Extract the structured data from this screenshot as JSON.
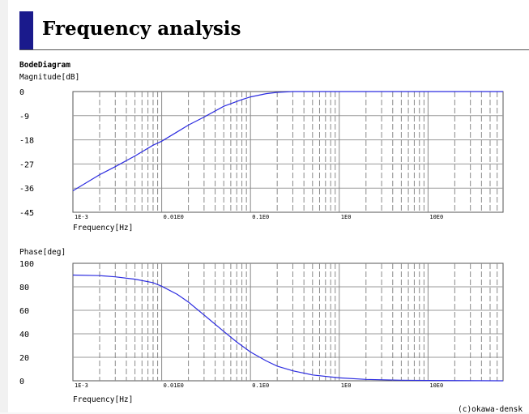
{
  "page": {
    "title": "Frequency analysis"
  },
  "copyright": "(c)okawa-densk",
  "chart_data": [
    {
      "type": "line",
      "diagram_title": "BodeDiagram",
      "ylabel": "Magnitude[dB]",
      "xlabel": "Frequency[Hz]",
      "xscale": "log",
      "xlim": [
        0.001,
        70
      ],
      "ylim": [
        -45,
        0
      ],
      "yticks": [
        "0",
        "-9",
        "-18",
        "-27",
        "-36",
        "-45"
      ],
      "xticks": [
        "1E-3",
        "0.01E0",
        "0.1E0",
        "1E0",
        "10E0"
      ],
      "grid": true,
      "series": [
        {
          "color": "#2c2ce0",
          "x": [
            0.001,
            0.002,
            0.003,
            0.005,
            0.008,
            0.01,
            0.015,
            0.02,
            0.03,
            0.05,
            0.08,
            0.1,
            0.15,
            0.2,
            0.3,
            1,
            10,
            70
          ],
          "y": [
            -37,
            -31,
            -28,
            -24,
            -20,
            -18.5,
            -15,
            -12.5,
            -9.5,
            -5.5,
            -3,
            -2,
            -0.8,
            -0.3,
            0,
            0,
            0,
            0
          ]
        }
      ]
    },
    {
      "type": "line",
      "ylabel": "Phase[deg]",
      "xlabel": "Frequency[Hz]",
      "xscale": "log",
      "xlim": [
        0.001,
        70
      ],
      "ylim": [
        0,
        100
      ],
      "yticks": [
        "100",
        "80",
        "60",
        "40",
        "20",
        "0"
      ],
      "xticks": [
        "1E-3",
        "0.01E0",
        "0.1E0",
        "1E0",
        "10E0"
      ],
      "grid": true,
      "series": [
        {
          "color": "#2c2ce0",
          "x": [
            0.001,
            0.002,
            0.003,
            0.005,
            0.008,
            0.01,
            0.015,
            0.02,
            0.03,
            0.05,
            0.07,
            0.1,
            0.15,
            0.2,
            0.3,
            0.5,
            1,
            2,
            5,
            10,
            70
          ],
          "y": [
            90,
            89.5,
            88.5,
            86.5,
            83.5,
            80.5,
            73.5,
            67,
            56,
            42,
            33,
            24.5,
            17,
            12.5,
            8.5,
            5,
            2.5,
            1.2,
            0.5,
            0.3,
            0
          ]
        }
      ]
    }
  ]
}
